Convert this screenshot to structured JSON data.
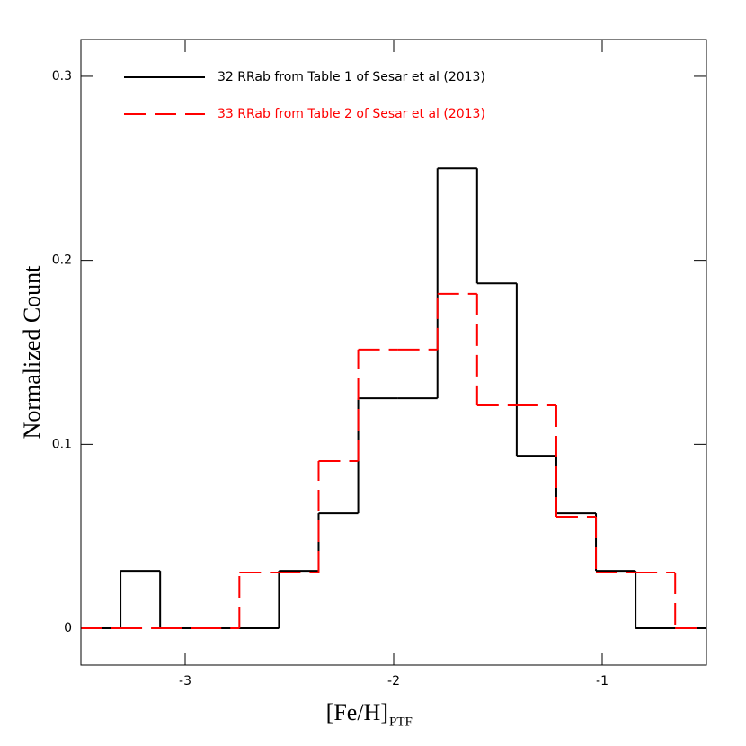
{
  "chart_data": {
    "type": "histogram",
    "x_label": "[Fe/H]",
    "x_label_sub": "PTF",
    "y_label": "Normalized Count",
    "bins": [
      -3.5,
      -3.31,
      -3.12,
      -2.93,
      -2.74,
      -2.55,
      -2.36,
      -2.17,
      -1.98,
      -1.79,
      -1.6,
      -1.41,
      -1.22,
      -1.03,
      -0.84,
      -0.65,
      -0.5
    ],
    "series": [
      {
        "name": "32 RRab from Table 1 of Sesar et al (2013)",
        "color": "#000000",
        "linestyle": "solid",
        "values": [
          0,
          0.03125,
          0,
          0,
          0,
          0.03125,
          0.0625,
          0.125,
          0.125,
          0.25,
          0.1875,
          0.09375,
          0.0625,
          0.03125,
          0,
          0
        ]
      },
      {
        "name": "33 RRab from Table 2 of Sesar et al (2013)",
        "color": "#ff0000",
        "linestyle": "dashed",
        "values": [
          0,
          0,
          0,
          0,
          0.0303,
          0.0303,
          0.0909,
          0.1515,
          0.1515,
          0.1818,
          0.1212,
          0.1212,
          0.0606,
          0.0303,
          0.0303,
          0
        ]
      }
    ],
    "xlim": [
      -3.5,
      -0.5
    ],
    "ylim": [
      -0.02,
      0.32
    ],
    "xticks": [
      -3,
      -2,
      -1
    ],
    "yticks": [
      0,
      0.1,
      0.2,
      0.3
    ]
  }
}
